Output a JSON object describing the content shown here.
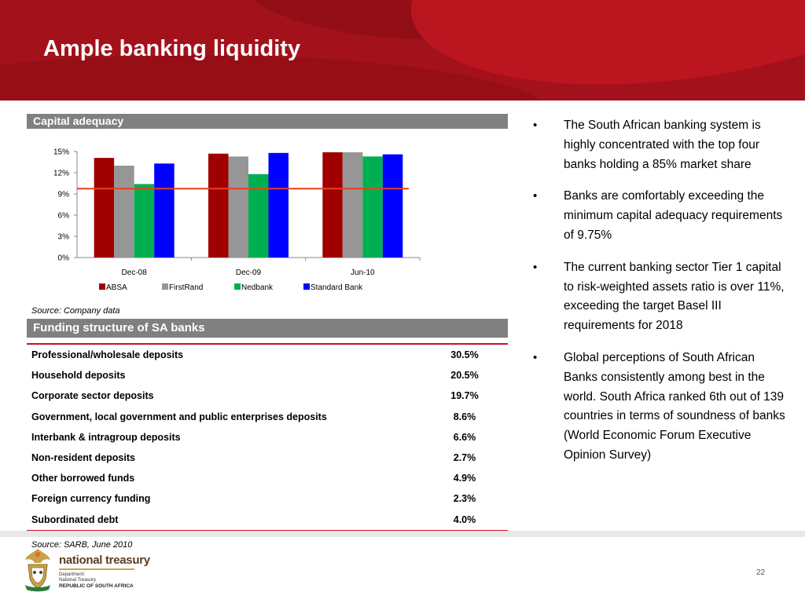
{
  "title": "Ample banking liquidity",
  "capital": {
    "header": "Capital adequacy",
    "source": "Source: Company data"
  },
  "chart_data": {
    "type": "bar",
    "categories": [
      "Dec-08",
      "Dec-09",
      "Jun-10"
    ],
    "series": [
      {
        "name": "ABSA",
        "color": "#a00000",
        "values": [
          14.1,
          14.7,
          14.9
        ]
      },
      {
        "name": "FirstRand",
        "color": "#969696",
        "values": [
          13.0,
          14.3,
          14.9
        ]
      },
      {
        "name": "Nedbank",
        "color": "#00b050",
        "values": [
          10.4,
          11.8,
          14.3
        ]
      },
      {
        "name": "Standard Bank",
        "color": "#0000ff",
        "values": [
          13.3,
          14.8,
          14.6
        ]
      }
    ],
    "reference_line": {
      "value": 9.75,
      "color": "#e8401c"
    },
    "ylim": [
      0,
      15
    ],
    "yticks": [
      0,
      3,
      6,
      9,
      12,
      15
    ],
    "ytick_labels": [
      "0%",
      "3%",
      "6%",
      "9%",
      "12%",
      "15%"
    ],
    "legend_position": "bottom",
    "grid": false
  },
  "funding": {
    "header": "Funding structure of SA banks",
    "rows": [
      {
        "label": "Professional/wholesale deposits",
        "value": "30.5%"
      },
      {
        "label": "Household deposits",
        "value": "20.5%"
      },
      {
        "label": "Corporate sector deposits",
        "value": "19.7%"
      },
      {
        "label": "Government, local government and public enterprises deposits",
        "value": "8.6%"
      },
      {
        "label": "Interbank & intragroup deposits",
        "value": "6.6%"
      },
      {
        "label": "Non-resident deposits",
        "value": "2.7%"
      },
      {
        "label": "Other borrowed funds",
        "value": "4.9%"
      },
      {
        "label": "Foreign currency funding",
        "value": "2.3%"
      },
      {
        "label": "Subordinated debt",
        "value": "4.0%"
      }
    ],
    "source": "Source: SARB, June 2010"
  },
  "bullets": [
    "The South African banking system is highly concentrated with the top four banks holding a 85% market share",
    "Banks are comfortably exceeding the minimum capital adequacy requirements  of 9.75%",
    "The current banking sector Tier 1 capital to risk-weighted assets ratio is over 11%, exceeding the target Basel III requirements for 2018",
    "Global perceptions of South African Banks consistently among best in the world. South Africa ranked 6th out of 139 countries in terms of soundness of banks (World Economic Forum Executive Opinion Survey)"
  ],
  "footer": {
    "org_name": "national treasury",
    "dept_line1": "Department:",
    "dept_line2": "National Treasury",
    "republic": "REPUBLIC OF SOUTH AFRICA",
    "page_number": "22"
  },
  "colors": {
    "header_red": "#a3111a",
    "section_gray": "#808080",
    "rule_red": "#c8102e"
  }
}
